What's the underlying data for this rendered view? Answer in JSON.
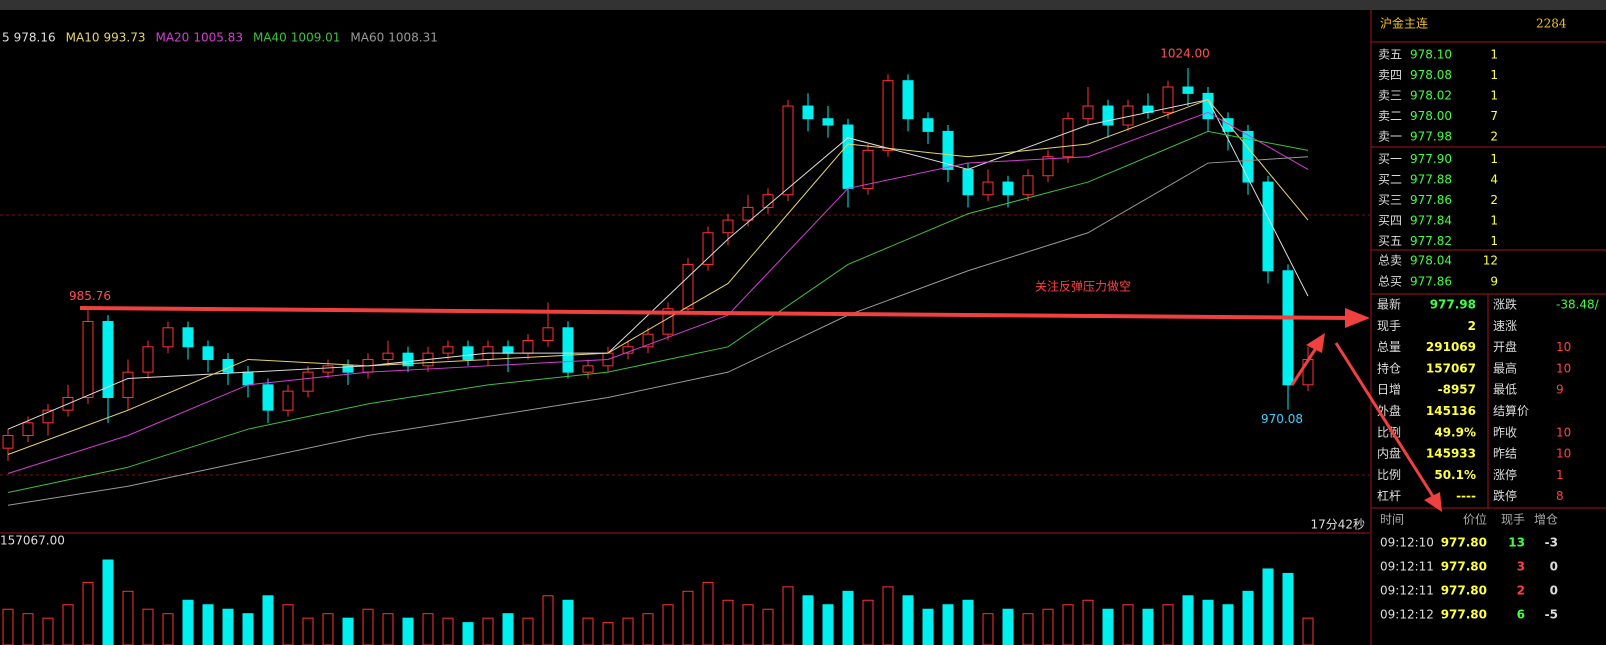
{
  "chart_data": {
    "type": "candlestick",
    "ma_legend": [
      {
        "name": "5",
        "value": 978.16,
        "color": "#dddddd",
        "values": [
          967,
          975,
          976,
          977,
          979,
          979,
          997,
          1013,
          1008,
          1015,
          1019,
          988
        ]
      },
      {
        "name": "MA10",
        "value": 993.73,
        "color": "#e6d36b",
        "values": [
          963,
          970,
          978,
          977,
          978,
          979,
          990,
          1012,
          1010,
          1012,
          1019,
          1000
        ]
      },
      {
        "name": "MA20",
        "value": 1005.83,
        "color": "#d33fd3",
        "values": [
          960,
          966,
          974,
          976,
          977,
          978,
          985,
          1005,
          1009,
          1010,
          1017,
          1008
        ]
      },
      {
        "name": "MA40",
        "value": 1009.01,
        "color": "#3fbf3f",
        "values": [
          957,
          961,
          967,
          971,
          974,
          976,
          980,
          993,
          1001,
          1006,
          1014,
          1011
        ]
      },
      {
        "name": "MA60",
        "value": 1008.31,
        "color": "#999999",
        "values": [
          955,
          958,
          962,
          966,
          969,
          972,
          976,
          985,
          992,
          998,
          1009,
          1010
        ]
      }
    ],
    "ma_x": [
      0,
      6,
      12,
      18,
      24,
      30,
      36,
      42,
      48,
      54,
      60,
      65
    ],
    "ylim": [
      957.4,
      1030
    ],
    "up_color": "#ff3232",
    "down_color": "#00f0f0",
    "open": [
      964,
      966,
      968,
      970,
      972,
      984,
      972,
      976,
      980,
      983,
      980,
      978,
      976,
      974,
      970,
      973,
      976,
      977,
      976,
      978,
      979,
      977,
      979,
      980,
      978,
      980,
      979,
      981,
      983,
      976,
      977,
      979,
      980,
      982,
      986,
      993,
      998,
      1000,
      1002,
      1004,
      1018,
      1016,
      1015,
      1005,
      1011,
      1022,
      1016,
      1014,
      1008,
      1004,
      1006,
      1004,
      1007,
      1010,
      1016,
      1018,
      1015,
      1018,
      1017,
      1021,
      1020,
      1016,
      1014,
      1006,
      992,
      974
    ],
    "high": [
      967,
      969,
      971,
      974,
      985.76,
      985,
      978,
      981,
      984,
      984,
      981,
      979,
      977,
      975,
      974,
      977,
      978,
      978,
      979,
      981,
      980,
      980,
      981,
      981,
      981,
      981,
      982,
      987,
      984,
      978,
      980,
      981,
      983,
      987,
      994,
      999,
      1001,
      1004,
      1005,
      1019,
      1020,
      1018,
      1016,
      1012,
      1023,
      1023,
      1017,
      1015,
      1009,
      1008,
      1007,
      1008,
      1011,
      1017,
      1021,
      1019,
      1019,
      1020,
      1022,
      1024,
      1021,
      1017,
      1015,
      1007,
      993,
      980
    ],
    "low": [
      962,
      965,
      966,
      969,
      971,
      968,
      970,
      975,
      979,
      978,
      976,
      974,
      972,
      968,
      969,
      972,
      975,
      974,
      975,
      977,
      976,
      976,
      978,
      977,
      977,
      976,
      978,
      980,
      975,
      975,
      976,
      978,
      979,
      981,
      985,
      992,
      996,
      999,
      1001,
      1003,
      1014,
      1013,
      1002,
      1004,
      1010,
      1014,
      1012,
      1006,
      1002,
      1003,
      1002,
      1003,
      1006,
      1009,
      1015,
      1013,
      1014,
      1016,
      1016,
      1018,
      1014,
      1011,
      1004,
      990,
      970.08,
      973
    ],
    "close": [
      966,
      968,
      970,
      972,
      984,
      972,
      976,
      980,
      983,
      980,
      978,
      976,
      974,
      970,
      973,
      976,
      977,
      976,
      978,
      979,
      977,
      979,
      980,
      978,
      980,
      979,
      981,
      983,
      976,
      977,
      979,
      980,
      982,
      986,
      993,
      998,
      1000,
      1002,
      1004,
      1018,
      1016,
      1015,
      1005,
      1011,
      1022,
      1016,
      1014,
      1008,
      1004,
      1006,
      1004,
      1007,
      1010,
      1016,
      1018,
      1015,
      1018,
      1017,
      1021,
      1020,
      1016,
      1014,
      1006,
      992,
      974,
      978
    ],
    "volume": [
      40,
      35,
      30,
      45,
      70,
      95,
      60,
      40,
      35,
      50,
      45,
      40,
      35,
      55,
      45,
      30,
      35,
      30,
      40,
      35,
      30,
      35,
      30,
      25,
      30,
      35,
      30,
      55,
      50,
      30,
      25,
      30,
      35,
      45,
      60,
      70,
      50,
      45,
      40,
      65,
      55,
      45,
      60,
      50,
      65,
      55,
      40,
      45,
      50,
      35,
      40,
      35,
      40,
      45,
      50,
      40,
      45,
      40,
      45,
      55,
      50,
      45,
      60,
      85,
      80,
      30
    ],
    "price_labels": [
      {
        "value": 1024,
        "label": "1024.00"
      },
      {
        "value": 985.76,
        "label": "985.76"
      },
      {
        "value": 970.08,
        "label": "970.08"
      }
    ],
    "annotation": "关注反弹压力做空",
    "timer": "17分42秒",
    "oi_label": "157067.00"
  },
  "panel": {
    "name": "沪金主连",
    "code": "2284",
    "book": [
      [
        "卖五",
        "978.10",
        "1"
      ],
      [
        "卖四",
        "978.08",
        "1"
      ],
      [
        "卖三",
        "978.02",
        "1"
      ],
      [
        "卖二",
        "978.00",
        "7"
      ],
      [
        "卖一",
        "977.98",
        "2"
      ],
      [
        "买一",
        "977.90",
        "1"
      ],
      [
        "买二",
        "977.88",
        "4"
      ],
      [
        "买三",
        "977.86",
        "2"
      ],
      [
        "买四",
        "977.84",
        "1"
      ],
      [
        "买五",
        "977.82",
        "1"
      ]
    ],
    "totals": [
      [
        "总卖",
        "978.04",
        "12"
      ],
      [
        "总买",
        "977.86",
        "9"
      ]
    ],
    "stats": [
      [
        "最新",
        "977.98",
        "涨跌",
        "-38.48/"
      ],
      [
        "现手",
        "2",
        "速涨",
        ""
      ],
      [
        "总量",
        "291069",
        "开盘",
        "10"
      ],
      [
        "持仓",
        "157067",
        "最高",
        "10"
      ],
      [
        "日增",
        "-8957",
        "最低",
        "9"
      ],
      [
        "外盘",
        "145136",
        "结算价",
        ""
      ],
      [
        "比例",
        "49.9%",
        "昨收",
        "10"
      ],
      [
        "内盘",
        "145933",
        "昨结",
        "10"
      ],
      [
        "比例",
        "50.1%",
        "涨停",
        "1"
      ],
      [
        "杠杆",
        "----",
        "跌停",
        "8"
      ]
    ],
    "tick_header": [
      "时间",
      "价位",
      "现手",
      "增仓"
    ],
    "ticks": [
      [
        "09:12:10",
        "977.80",
        "13",
        "-3"
      ],
      [
        "09:12:11",
        "977.80",
        "3",
        "0"
      ],
      [
        "09:12:11",
        "977.80",
        "2",
        "0"
      ],
      [
        "09:12:12",
        "977.80",
        "6",
        "-5"
      ]
    ]
  }
}
